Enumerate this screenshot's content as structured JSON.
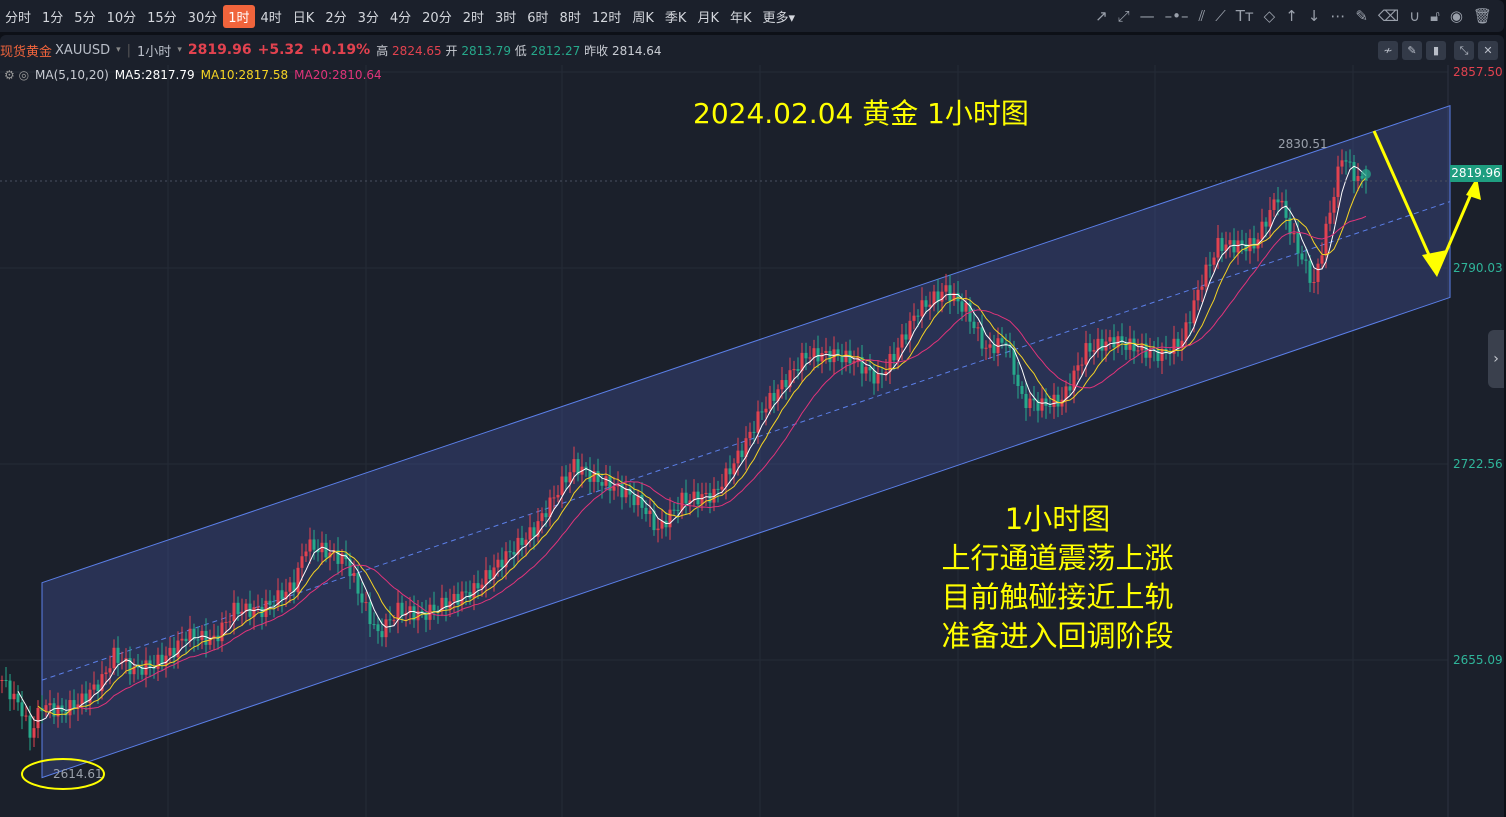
{
  "timeframes": [
    "分时",
    "1分",
    "5分",
    "10分",
    "15分",
    "30分",
    "1时",
    "4时",
    "日K",
    "2分",
    "3分",
    "4分",
    "20分",
    "2时",
    "3时",
    "6时",
    "8时",
    "12时",
    "周K",
    "季K",
    "月K",
    "年K",
    "更多▾"
  ],
  "active_timeframe": "1时",
  "drawing_tools": [
    "arrow-icon",
    "ray-icon",
    "horizontal-line-icon",
    "horizontal-ray-icon",
    "parallel-channel-icon",
    "segment-icon",
    "text-icon",
    "tag-icon",
    "arrow-up-icon",
    "arrow-down-icon",
    "more-icon",
    "edit-icon",
    "eraser-icon",
    "magnet-icon",
    "unlock-icon",
    "eye-icon",
    "trash-icon"
  ],
  "symbol": {
    "name": "现货黄金",
    "code": "XAUUSD",
    "period": "1小时",
    "price": "2819.96",
    "change": "+5.32",
    "change_pct": "+0.19%",
    "high_label": "高",
    "high": "2824.65",
    "open_label": "开",
    "open": "2813.79",
    "low_label": "低",
    "low": "2812.27",
    "prev_close_label": "昨收",
    "prev_close": "2814.64"
  },
  "ma": {
    "label": "MA(5,10,20)",
    "ma5": "MA5:2817.79",
    "ma10": "MA10:2817.58",
    "ma20": "MA20:2810.64"
  },
  "colors": {
    "up": "#e2424f",
    "down": "#26a98b",
    "ma5": "#ffffff",
    "ma10": "#f5d424",
    "ma20": "#e0347a",
    "annotation": "#ffff00",
    "channel": "#5b7fe8"
  },
  "annotations": {
    "title": "2024.02.04 黄金 1小时图",
    "lines": [
      "1小时图",
      "上行通道震荡上涨",
      "目前触碰接近上轨",
      "准备进入回调阶段"
    ],
    "high_mark": "2830.51",
    "low_mark": "2614.61",
    "current_price": "2819.96"
  },
  "chart_data": {
    "type": "candlestick",
    "title": "2024.02.04 黄金 1小时图",
    "y_ticks": [
      "2857.50",
      "2790.03",
      "2722.56",
      "2655.09"
    ],
    "ylim": [
      2600,
      2875
    ],
    "price_path": [
      [
        0,
        2648.2
      ],
      [
        5,
        2637.9
      ],
      [
        7,
        2629.3
      ],
      [
        10,
        2639.6
      ],
      [
        15,
        2637.2
      ],
      [
        20,
        2641.3
      ],
      [
        25,
        2648.2
      ],
      [
        28,
        2656.8
      ],
      [
        33,
        2651.6
      ],
      [
        38,
        2653.4
      ],
      [
        43,
        2658.5
      ],
      [
        46,
        2663.7
      ],
      [
        53,
        2662.0
      ],
      [
        58,
        2672.3
      ],
      [
        65,
        2672.3
      ],
      [
        73,
        2680.9
      ],
      [
        76,
        2694.7
      ],
      [
        80,
        2693.0
      ],
      [
        86,
        2689.5
      ],
      [
        90,
        2675.7
      ],
      [
        94,
        2663.7
      ],
      [
        99,
        2672.3
      ],
      [
        105,
        2670.6
      ],
      [
        110,
        2674.0
      ],
      [
        118,
        2679.2
      ],
      [
        125,
        2689.5
      ],
      [
        133,
        2699.8
      ],
      [
        139,
        2713.6
      ],
      [
        143,
        2722.2
      ],
      [
        149,
        2717.0
      ],
      [
        155,
        2713.6
      ],
      [
        160,
        2708.5
      ],
      [
        164,
        2699.8
      ],
      [
        170,
        2710.2
      ],
      [
        178,
        2711.9
      ],
      [
        185,
        2727.4
      ],
      [
        190,
        2741.1
      ],
      [
        196,
        2751.5
      ],
      [
        201,
        2760.1
      ],
      [
        208,
        2760.1
      ],
      [
        213,
        2758.4
      ],
      [
        219,
        2751.5
      ],
      [
        223,
        2760.1
      ],
      [
        229,
        2775.6
      ],
      [
        236,
        2782.5
      ],
      [
        241,
        2775.6
      ],
      [
        246,
        2761.8
      ],
      [
        251,
        2765.2
      ],
      [
        255,
        2744.6
      ],
      [
        260,
        2742.9
      ],
      [
        265,
        2744.6
      ],
      [
        271,
        2761.8
      ],
      [
        278,
        2765.2
      ],
      [
        285,
        2761.8
      ],
      [
        290,
        2760.1
      ],
      [
        295,
        2765.2
      ],
      [
        300,
        2785.9
      ],
      [
        304,
        2797.9
      ],
      [
        313,
        2797.9
      ],
      [
        319,
        2815.1
      ],
      [
        323,
        2799.6
      ],
      [
        328,
        2784.2
      ],
      [
        331,
        2803.1
      ],
      [
        335,
        2828.9
      ],
      [
        339,
        2820.3
      ],
      [
        341,
        2819.96
      ]
    ],
    "channel": {
      "lower": [
        [
          10,
          2614.61
        ],
        [
          362,
          2779.9
        ]
      ],
      "upper": [
        [
          10,
          2681.7
        ],
        [
          362,
          2845.9
        ]
      ]
    }
  }
}
